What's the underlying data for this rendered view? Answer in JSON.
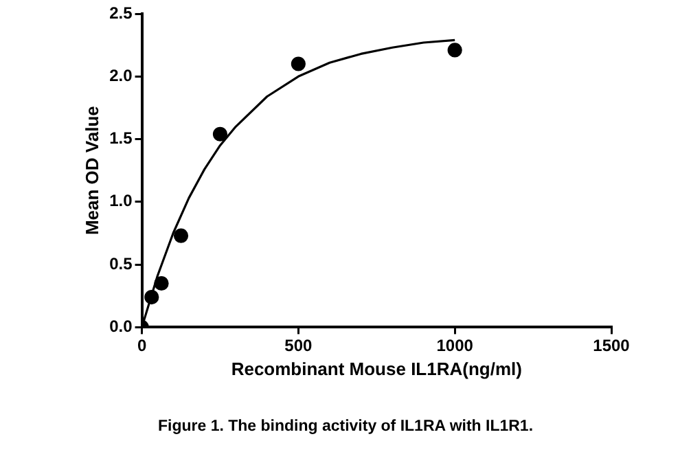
{
  "chart_data": {
    "type": "scatter",
    "title": "Figure 1. The binding activity of IL1RA with IL1R1.",
    "xlabel": "Recombinant Mouse IL1RA(ng/ml)",
    "ylabel": "Mean OD Value",
    "xlim": [
      0,
      1500
    ],
    "xticks": [
      0,
      500,
      1000,
      1500
    ],
    "ylim": [
      0,
      2.5
    ],
    "yticks": [
      {
        "value": 0,
        "label": "0.0"
      },
      {
        "value": 0.5,
        "label": "0.5"
      },
      {
        "value": 1,
        "label": "1.0"
      },
      {
        "value": 1.5,
        "label": "1.5"
      },
      {
        "value": 2,
        "label": "2.0"
      },
      {
        "value": 2.5,
        "label": "2.5"
      }
    ],
    "grid": false,
    "legend": false,
    "series": [
      {
        "color": "#000000",
        "marker": "circle",
        "x": [
          0,
          31.25,
          62.5,
          125,
          250,
          500,
          1000
        ],
        "values": [
          0,
          0.24,
          0.35,
          0.73,
          1.54,
          2.1,
          2.21
        ]
      },
      {
        "type": "line",
        "color": "#000000",
        "marker": "none",
        "line_style": "solid",
        "x": [
          0,
          50,
          100,
          150,
          200,
          250,
          300,
          400,
          500,
          600,
          700,
          800,
          900,
          1000
        ],
        "values": [
          0,
          0.41,
          0.75,
          1.03,
          1.26,
          1.45,
          1.6,
          1.84,
          2.0,
          2.11,
          2.18,
          2.23,
          2.27,
          2.29
        ]
      }
    ]
  }
}
